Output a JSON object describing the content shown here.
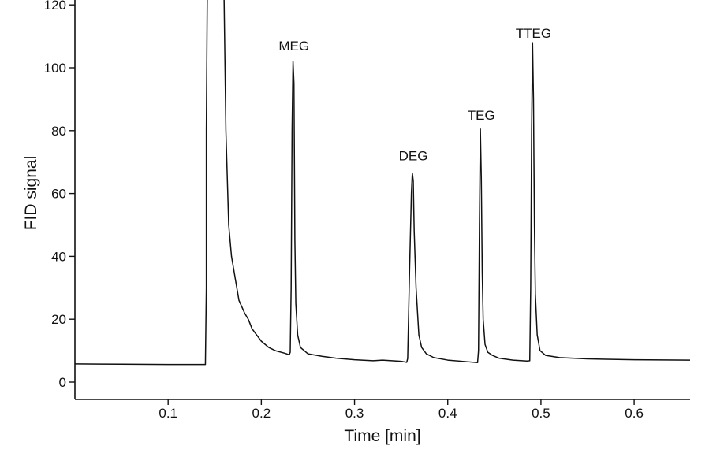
{
  "chart_data": {
    "type": "line",
    "title": "",
    "xlabel": "Time [min]",
    "ylabel": "FID signal",
    "xlim": [
      0,
      0.66
    ],
    "ylim": [
      -5,
      120
    ],
    "x_ticks": [
      {
        "value": 0.1,
        "label": "0.1"
      },
      {
        "value": 0.2,
        "label": "0.2"
      },
      {
        "value": 0.3,
        "label": "0.3"
      },
      {
        "value": 0.4,
        "label": "0.4"
      },
      {
        "value": 0.5,
        "label": "0.5"
      },
      {
        "value": 0.6,
        "label": "0.6"
      }
    ],
    "y_ticks": [
      {
        "value": 0,
        "label": "0"
      },
      {
        "value": 20,
        "label": "20"
      },
      {
        "value": 40,
        "label": "40"
      },
      {
        "value": 60,
        "label": "60"
      },
      {
        "value": 80,
        "label": "80"
      },
      {
        "value": 100,
        "label": "100"
      },
      {
        "value": 120,
        "label": "120"
      }
    ],
    "grid": false,
    "series": [
      {
        "color": "#111111",
        "points": [
          [
            0.0,
            5.8
          ],
          [
            0.05,
            5.7
          ],
          [
            0.1,
            5.6
          ],
          [
            0.14,
            5.6
          ],
          [
            0.141,
            30
          ],
          [
            0.141,
            80
          ],
          [
            0.142,
            125
          ],
          [
            0.16,
            125
          ],
          [
            0.162,
            80
          ],
          [
            0.165,
            50
          ],
          [
            0.168,
            40
          ],
          [
            0.172,
            33
          ],
          [
            0.176,
            26
          ],
          [
            0.182,
            22
          ],
          [
            0.186,
            20
          ],
          [
            0.19,
            17
          ],
          [
            0.195,
            15
          ],
          [
            0.2,
            13
          ],
          [
            0.208,
            11
          ],
          [
            0.215,
            10
          ],
          [
            0.225,
            9.2
          ],
          [
            0.23,
            8.7
          ],
          [
            0.231,
            9.5
          ],
          [
            0.232,
            30
          ],
          [
            0.233,
            80
          ],
          [
            0.234,
            102
          ],
          [
            0.235,
            95
          ],
          [
            0.236,
            45
          ],
          [
            0.237,
            25
          ],
          [
            0.239,
            15
          ],
          [
            0.242,
            11
          ],
          [
            0.246,
            10
          ],
          [
            0.25,
            9
          ],
          [
            0.265,
            8.2
          ],
          [
            0.28,
            7.6
          ],
          [
            0.3,
            7.1
          ],
          [
            0.32,
            6.8
          ],
          [
            0.33,
            7.0
          ],
          [
            0.34,
            6.8
          ],
          [
            0.35,
            6.6
          ],
          [
            0.356,
            6.3
          ],
          [
            0.357,
            7.5
          ],
          [
            0.359,
            35
          ],
          [
            0.361,
            60
          ],
          [
            0.362,
            66.5
          ],
          [
            0.363,
            64
          ],
          [
            0.364,
            48
          ],
          [
            0.366,
            30
          ],
          [
            0.369,
            15
          ],
          [
            0.372,
            11
          ],
          [
            0.377,
            9
          ],
          [
            0.385,
            7.8
          ],
          [
            0.4,
            7.0
          ],
          [
            0.42,
            6.5
          ],
          [
            0.432,
            6.2
          ],
          [
            0.433,
            10
          ],
          [
            0.434,
            50
          ],
          [
            0.435,
            80.5
          ],
          [
            0.436,
            65
          ],
          [
            0.437,
            35
          ],
          [
            0.438,
            20
          ],
          [
            0.44,
            12
          ],
          [
            0.443,
            9.5
          ],
          [
            0.448,
            8.5
          ],
          [
            0.455,
            7.6
          ],
          [
            0.47,
            7.0
          ],
          [
            0.485,
            6.7
          ],
          [
            0.488,
            6.8
          ],
          [
            0.489,
            30
          ],
          [
            0.49,
            80
          ],
          [
            0.491,
            108
          ],
          [
            0.492,
            90
          ],
          [
            0.493,
            50
          ],
          [
            0.494,
            28
          ],
          [
            0.496,
            15
          ],
          [
            0.499,
            10
          ],
          [
            0.505,
            8.5
          ],
          [
            0.52,
            7.8
          ],
          [
            0.55,
            7.4
          ],
          [
            0.6,
            7.1
          ],
          [
            0.66,
            7.0
          ]
        ]
      }
    ],
    "annotations": [
      {
        "text": "MEG",
        "x": 0.235,
        "y": 105.5
      },
      {
        "text": "DEG",
        "x": 0.363,
        "y": 70.5
      },
      {
        "text": "TEG",
        "x": 0.436,
        "y": 83.5
      },
      {
        "text": "TTEG",
        "x": 0.492,
        "y": 109.5
      }
    ]
  }
}
